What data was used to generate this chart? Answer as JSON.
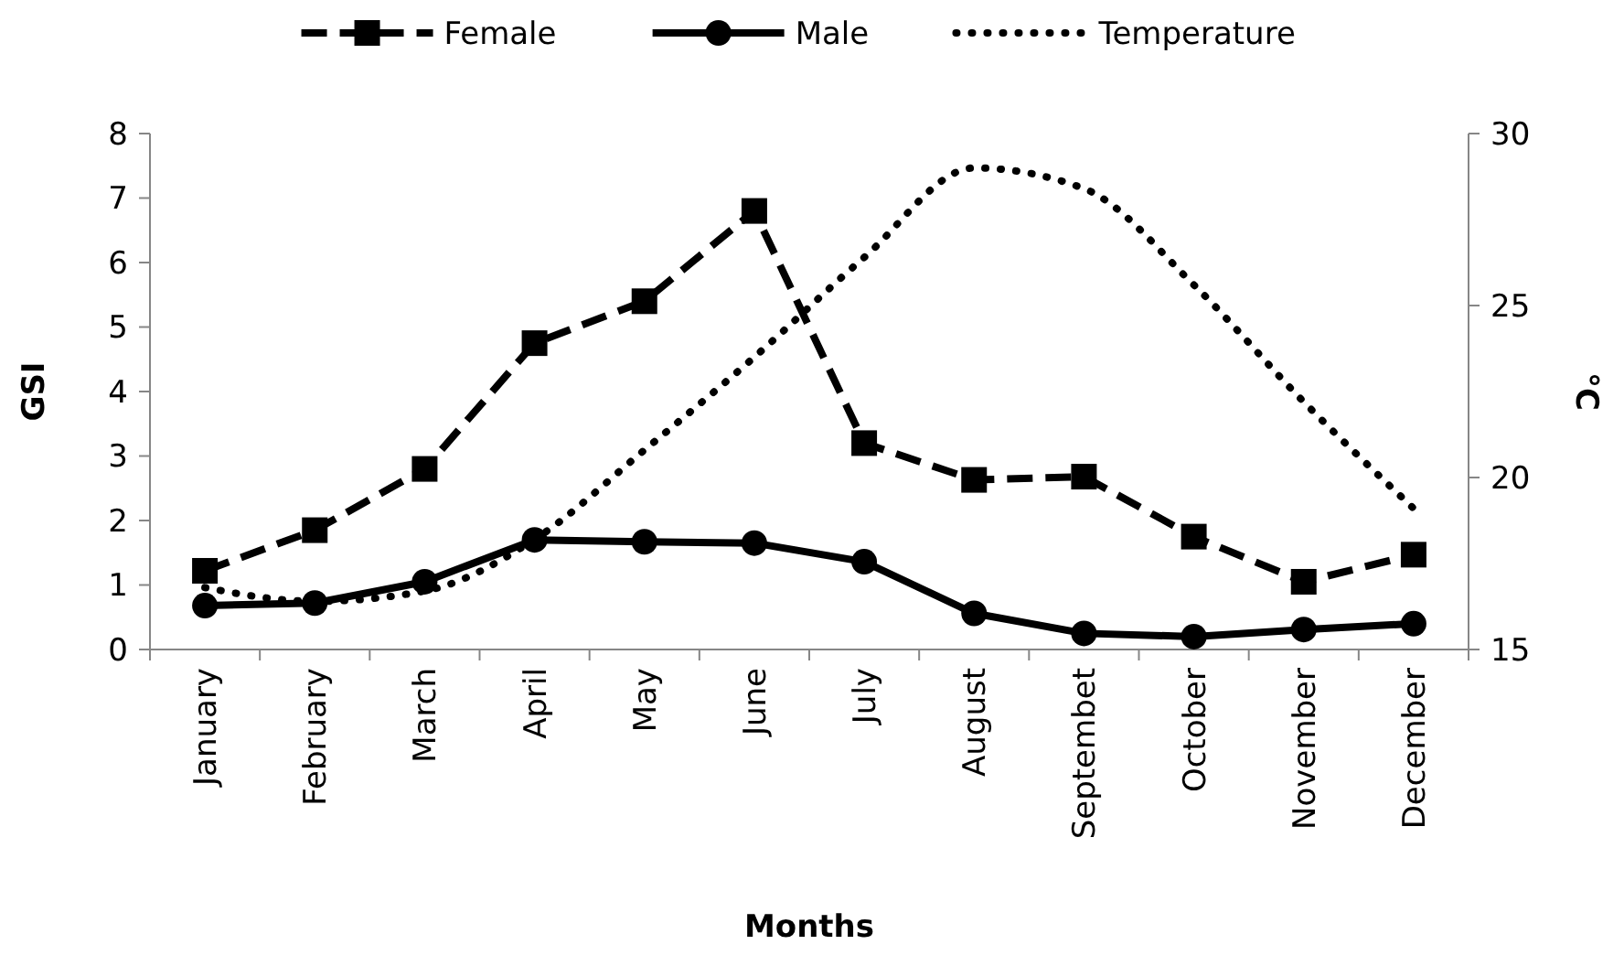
{
  "chart_data": {
    "type": "line",
    "xlabel": "Months",
    "ylabel": "GSI",
    "y2label": "°C",
    "categories": [
      "January",
      "February",
      "March",
      "April",
      "May",
      "June",
      "July",
      "August",
      "Septembet",
      "October",
      "November",
      "December"
    ],
    "series": [
      {
        "name": "Female",
        "color": "#000000",
        "marker": "square",
        "line_style": "dashed",
        "values": [
          1.22,
          1.85,
          2.8,
          4.75,
          5.4,
          6.8,
          3.2,
          2.63,
          2.68,
          1.75,
          1.05,
          1.47
        ]
      },
      {
        "name": "Male",
        "color": "#000000",
        "marker": "circle",
        "line_style": "solid",
        "values": [
          0.68,
          0.72,
          1.05,
          1.7,
          1.67,
          1.65,
          1.36,
          0.56,
          0.25,
          0.2,
          0.31,
          0.4
        ]
      },
      {
        "name": "Temperature",
        "color": "#000000",
        "marker": "none",
        "line_style": "dotted",
        "axis": "y2",
        "values": [
          16.8,
          16.4,
          16.7,
          18.2,
          20.8,
          23.5,
          26.4,
          29.0,
          28.4,
          25.6,
          22.2,
          19.1
        ]
      }
    ],
    "ylim": [
      0,
      8
    ],
    "yticks": [
      0,
      1,
      2,
      3,
      4,
      5,
      6,
      7,
      8
    ],
    "y2lim": [
      15,
      30
    ],
    "y2ticks": [
      15,
      20,
      25,
      30
    ],
    "grid": false,
    "legend": "top"
  }
}
